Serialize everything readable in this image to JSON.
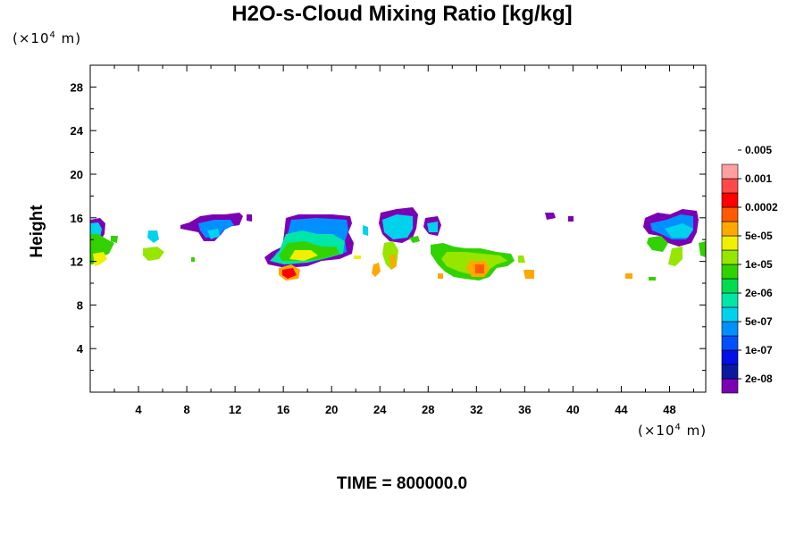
{
  "chart_data": {
    "type": "heatmap",
    "title": "H2O-s-Cloud Mixing Ratio [kg/kg]",
    "xlabel": "",
    "ylabel": "Height",
    "x_unit_prefix": "(×10",
    "x_unit_exp": "4",
    "x_unit_suffix": " m)",
    "y_unit_prefix": "(×10",
    "y_unit_exp": "4",
    "y_unit_suffix": " m)",
    "xlim": [
      0,
      51
    ],
    "ylim": [
      0,
      30
    ],
    "x_ticks": [
      "4",
      "8",
      "12",
      "16",
      "20",
      "24",
      "28",
      "32",
      "36",
      "40",
      "44",
      "48"
    ],
    "y_ticks": [
      "4",
      "8",
      "12",
      "16",
      "20",
      "24",
      "28"
    ],
    "colorbar": {
      "colors": [
        "#7b00b4",
        "#0a1aa0",
        "#0010e6",
        "#0050ff",
        "#0090ff",
        "#00d2ee",
        "#00e6a8",
        "#00dc50",
        "#32d200",
        "#96e600",
        "#f0f000",
        "#ffa800",
        "#ff5a00",
        "#ff0000",
        "#ff4848",
        "#ffa0a0"
      ],
      "labels": [
        "2e-08",
        "1e-07",
        "5e-07",
        "2e-06",
        "1e-05",
        "5e-05",
        "0.0002",
        "0.001",
        "0.005"
      ]
    },
    "cloud_features": [
      {
        "x": [
          0,
          1.5
        ],
        "y": [
          11,
          15.5
        ],
        "max_level": "5e-05"
      },
      {
        "x": [
          4.5,
          6
        ],
        "y": [
          12,
          14.5
        ],
        "max_level": "5e-05"
      },
      {
        "x": [
          7.5,
          13
        ],
        "y": [
          14.5,
          16.5
        ],
        "max_level": "5e-07"
      },
      {
        "x": [
          14,
          22
        ],
        "y": [
          10.5,
          16.5
        ],
        "max_level": "0.001"
      },
      {
        "x": [
          23,
          27
        ],
        "y": [
          11,
          17
        ],
        "max_level": "5e-05"
      },
      {
        "x": [
          28,
          35
        ],
        "y": [
          10,
          13.5
        ],
        "max_level": "0.0002"
      },
      {
        "x": [
          38,
          40
        ],
        "y": [
          15.5,
          16.5
        ],
        "max_level": "2e-08"
      },
      {
        "x": [
          46,
          51
        ],
        "y": [
          12,
          16.5
        ],
        "max_level": "5e-05"
      }
    ],
    "footer": "TIME = 800000.0"
  }
}
